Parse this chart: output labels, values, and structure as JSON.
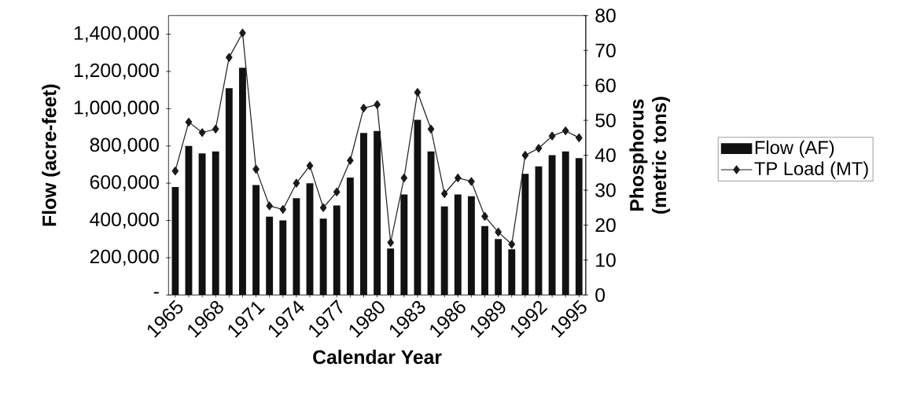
{
  "chart_data": {
    "type": "bar",
    "xlabel": "Calendar Year",
    "ylabel": "Flow (acre-feet)",
    "y2label": "Phosphorus (metric tons)",
    "categories": [
      "1965",
      null,
      null,
      "1968",
      null,
      null,
      "1971",
      null,
      null,
      "1974",
      null,
      null,
      "1977",
      null,
      null,
      "1980",
      null,
      null,
      "1983",
      null,
      null,
      "1986",
      null,
      null,
      "1989",
      null,
      null,
      "1992",
      null,
      null,
      "1995"
    ],
    "series": [
      {
        "name": "Flow (AF)",
        "color": "#111111",
        "values": [
          580000,
          800000,
          760000,
          770000,
          1110000,
          1220000,
          590000,
          420000,
          400000,
          520000,
          600000,
          410000,
          480000,
          630000,
          870000,
          880000,
          250000,
          540000,
          940000,
          770000,
          475000,
          540000,
          530000,
          370000,
          300000,
          245000,
          650000,
          690000,
          750000,
          770000,
          735000
        ]
      },
      {
        "name": "TP Load (MT)",
        "type": "line",
        "axis": "y2",
        "color": "#1a1a1a",
        "marker": "diamond",
        "values": [
          35.5,
          49.5,
          46.5,
          47.5,
          68,
          75,
          36,
          25.5,
          24.5,
          32,
          37,
          25,
          29.5,
          38.5,
          53.5,
          54.5,
          15,
          33.5,
          58,
          47.5,
          29,
          33.5,
          32.5,
          22.5,
          18,
          14.5,
          40,
          42,
          45.5,
          47,
          45
        ]
      }
    ],
    "ylim": [
      0,
      1500000
    ],
    "yticks": [
      {
        "value": 0,
        "label": "-"
      },
      {
        "value": 200000,
        "label": "200,000"
      },
      {
        "value": 400000,
        "label": "400,000"
      },
      {
        "value": 600000,
        "label": "600,000"
      },
      {
        "value": 800000,
        "label": "800,000"
      },
      {
        "value": 1000000,
        "label": "1,000,000"
      },
      {
        "value": 1200000,
        "label": "1,200,000"
      },
      {
        "value": 1400000,
        "label": "1,400,000"
      }
    ],
    "y2lim": [
      0,
      80
    ],
    "y2ticks": [
      0,
      10,
      20,
      30,
      40,
      50,
      60,
      70,
      80
    ],
    "legend": "right",
    "grid": false
  }
}
